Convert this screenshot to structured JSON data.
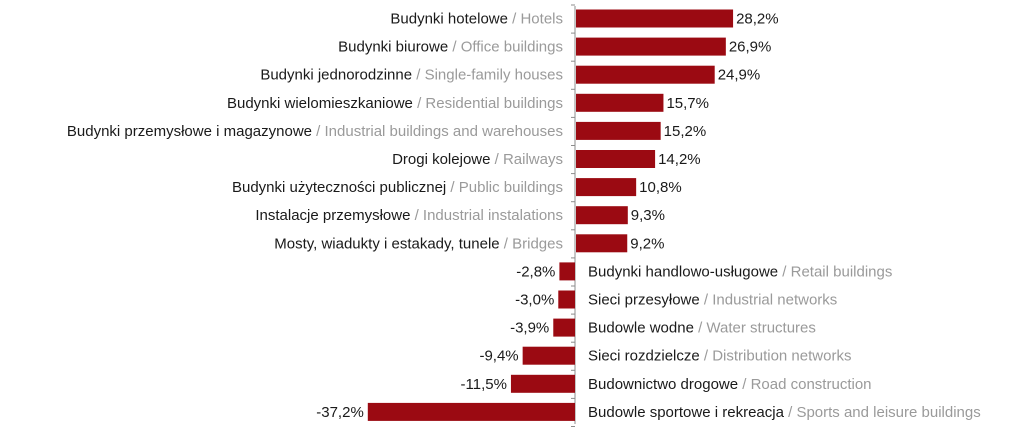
{
  "chart_data": {
    "type": "bar",
    "orientation": "horizontal",
    "title": "",
    "xlabel": "",
    "ylabel": "",
    "xlim": [
      -37.2,
      28.2
    ],
    "bar_color": "#9b0a12",
    "grid": false,
    "legend": "none",
    "categories": [
      {
        "pl": "Budynki hotelowe",
        "en": "Hotels"
      },
      {
        "pl": "Budynki biurowe",
        "en": "Office buildings"
      },
      {
        "pl": "Budynki jednorodzinne",
        "en": "Single-family houses"
      },
      {
        "pl": "Budynki wielomieszkaniowe",
        "en": "Residential buildings"
      },
      {
        "pl": "Budynki przemysłowe i magazynowe",
        "en": "Industrial buildings and warehouses"
      },
      {
        "pl": "Drogi kolejowe",
        "en": "Railways"
      },
      {
        "pl": "Budynki użyteczności publicznej",
        "en": "Public buildings"
      },
      {
        "pl": "Instalacje przemysłowe",
        "en": "Industrial instalations"
      },
      {
        "pl": "Mosty, wiadukty i estakady, tunele",
        "en": "Bridges"
      },
      {
        "pl": "Budynki handlowo-usługowe",
        "en": "Retail buildings"
      },
      {
        "pl": "Sieci przesyłowe",
        "en": "Industrial networks"
      },
      {
        "pl": "Budowle wodne",
        "en": "Water structures"
      },
      {
        "pl": "Sieci rozdzielcze",
        "en": "Distribution networks"
      },
      {
        "pl": "Budownictwo drogowe",
        "en": "Road construction"
      },
      {
        "pl": "Budowle sportowe i rekreacja",
        "en": "Sports and leisure buildings"
      }
    ],
    "values": [
      28.2,
      26.9,
      24.9,
      15.7,
      15.2,
      14.2,
      10.8,
      9.3,
      9.2,
      -2.8,
      -3.0,
      -3.9,
      -9.4,
      -11.5,
      -37.2
    ],
    "value_labels": [
      "28,2%",
      "26,9%",
      "24,9%",
      "15,7%",
      "15,2%",
      "14,2%",
      "10,8%",
      "9,3%",
      "9,2%",
      "-2,8%",
      "-3,0%",
      "-3,9%",
      "-9,4%",
      "-11,5%",
      "-37,2%"
    ],
    "category_separator": " / "
  }
}
